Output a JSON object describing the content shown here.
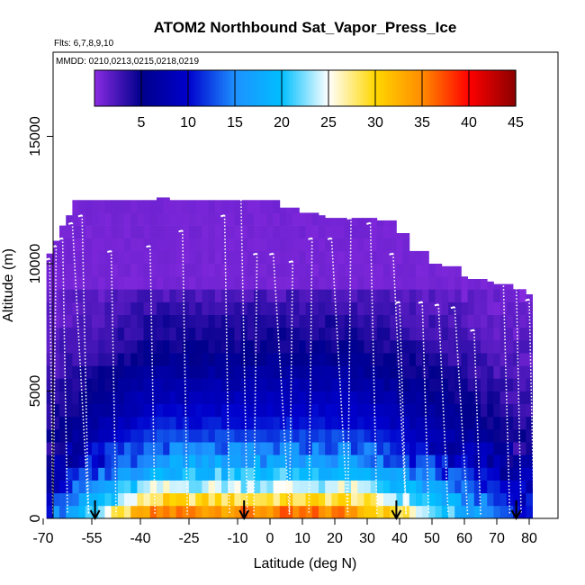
{
  "chart_data": {
    "type": "heatmap",
    "title": "ATOM2 Northbound Sat_Vapor_Press_Ice",
    "flights_label": "Flts: 6,7,8,9,10",
    "dates_label": "MMDD: 0210,0213,0215,0218,0219",
    "xlabel": "Latitude (deg N)",
    "ylabel": "Altitude (m)",
    "xlim": [
      -70,
      85
    ],
    "ylim": [
      0,
      17500
    ],
    "x_tick_values": [
      -70,
      -55,
      -40,
      -25,
      -10,
      0,
      10,
      20,
      30,
      40,
      50,
      60,
      70,
      80
    ],
    "x_tick_labels": [
      "-70",
      "-55",
      "-40",
      "-25",
      "-10",
      "0",
      "10",
      "20",
      "30",
      "40",
      "50",
      "60",
      "70",
      "80"
    ],
    "y_tick_values": [
      0,
      5000,
      10000,
      15000
    ],
    "y_tick_labels": [
      "0",
      "5000",
      "10000",
      "15000"
    ],
    "colorbar": {
      "range": [
        0,
        45
      ],
      "tick_values": [
        5,
        10,
        15,
        20,
        25,
        30,
        35,
        40,
        45
      ],
      "tick_labels": [
        "5",
        "10",
        "15",
        "20",
        "25",
        "30",
        "35",
        "40",
        "45"
      ],
      "colors": [
        "#8a2be2",
        "#00008b",
        "#0000cd",
        "#1e90ff",
        "#00bfff",
        "#ffffff",
        "#ffd700",
        "#ff8c00",
        "#ff0000",
        "#8b0000"
      ]
    },
    "column_tops_m": [
      [
        -68.5,
        10400
      ],
      [
        -67,
        10900
      ],
      [
        -65,
        11500
      ],
      [
        -63,
        11900
      ],
      [
        -61,
        12500
      ],
      [
        -34,
        12600
      ],
      [
        -31,
        12500
      ],
      [
        -9,
        12500
      ],
      [
        3,
        12200
      ],
      [
        10,
        12000
      ],
      [
        16,
        11900
      ],
      [
        18,
        11800
      ],
      [
        34,
        11700
      ],
      [
        39,
        11200
      ],
      [
        44,
        10500
      ],
      [
        49,
        10000
      ],
      [
        54,
        9900
      ],
      [
        59,
        9500
      ],
      [
        62,
        9400
      ],
      [
        67,
        9300
      ],
      [
        70,
        9200
      ],
      [
        75,
        9000
      ],
      [
        79,
        8900
      ],
      [
        80,
        8800
      ]
    ],
    "profile_tops_m": [
      [
        -68,
        10200
      ],
      [
        -66,
        10700
      ],
      [
        -64,
        11000
      ],
      [
        -61,
        11600
      ],
      [
        -58,
        11900
      ],
      [
        -49,
        10500
      ],
      [
        -37,
        10700
      ],
      [
        -27,
        11300
      ],
      [
        -14,
        11900
      ],
      [
        -9,
        12900
      ],
      [
        -4,
        10400
      ],
      [
        1,
        10400
      ],
      [
        7,
        10100
      ],
      [
        13,
        11000
      ],
      [
        19,
        11000
      ],
      [
        25,
        11800
      ],
      [
        31,
        11600
      ],
      [
        38,
        10400
      ],
      [
        40,
        8500
      ],
      [
        47,
        8500
      ],
      [
        52,
        8400
      ],
      [
        57,
        8300
      ],
      [
        63,
        7400
      ],
      [
        72,
        9400
      ],
      [
        76,
        9300
      ],
      [
        80,
        8600
      ]
    ],
    "profile_bottom_latitudes": [
      -67,
      -56,
      -41,
      -30,
      -17,
      -7,
      -5,
      6,
      12,
      24,
      33,
      42,
      49,
      55,
      61,
      65,
      74
    ],
    "sounding_arrows_latitude": [
      -54,
      -8,
      39,
      76
    ],
    "field_profile_by_altitude_m": [
      [
        0,
        38
      ],
      [
        500,
        32
      ],
      [
        1000,
        26
      ],
      [
        1500,
        22
      ],
      [
        2000,
        18
      ],
      [
        2500,
        15
      ],
      [
        3000,
        13
      ],
      [
        4000,
        10
      ],
      [
        5000,
        8
      ],
      [
        6000,
        6
      ],
      [
        7000,
        4.5
      ],
      [
        8000,
        3.5
      ],
      [
        9000,
        2
      ],
      [
        10000,
        1
      ],
      [
        12500,
        0
      ]
    ],
    "field_trend": "values peak near 0-1000 m at latitudes -40 to 25 (30-40), decreasing with altitude and toward both poles"
  }
}
